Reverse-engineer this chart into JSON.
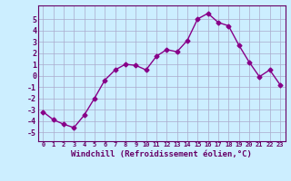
{
  "x": [
    0,
    1,
    2,
    3,
    4,
    5,
    6,
    7,
    8,
    9,
    10,
    11,
    12,
    13,
    14,
    15,
    16,
    17,
    18,
    19,
    20,
    21,
    22,
    23
  ],
  "y": [
    -3.2,
    -3.9,
    -4.3,
    -4.6,
    -3.5,
    -2.0,
    -0.4,
    0.5,
    1.0,
    0.9,
    0.5,
    1.7,
    2.3,
    2.1,
    3.1,
    5.0,
    5.5,
    4.7,
    4.4,
    2.7,
    1.2,
    -0.1,
    0.5,
    -0.8
  ],
  "line_color": "#880088",
  "marker": "D",
  "marker_size": 2.5,
  "line_width": 1.0,
  "bg_color": "#CCEEFF",
  "grid_color": "#AAAACC",
  "tick_color": "#660066",
  "spine_color": "#660066",
  "xlabel": "Windchill (Refroidissement éolien,°C)",
  "xlabel_fontsize": 6.5,
  "ytick_fontsize": 6.0,
  "xtick_fontsize": 5.0,
  "yticks": [
    -5,
    -4,
    -3,
    -2,
    -1,
    0,
    1,
    2,
    3,
    4,
    5
  ],
  "xticks": [
    0,
    1,
    2,
    3,
    4,
    5,
    6,
    7,
    8,
    9,
    10,
    11,
    12,
    13,
    14,
    15,
    16,
    17,
    18,
    19,
    20,
    21,
    22,
    23
  ],
  "ylim": [
    -5.8,
    6.2
  ],
  "xlim": [
    -0.5,
    23.5
  ]
}
